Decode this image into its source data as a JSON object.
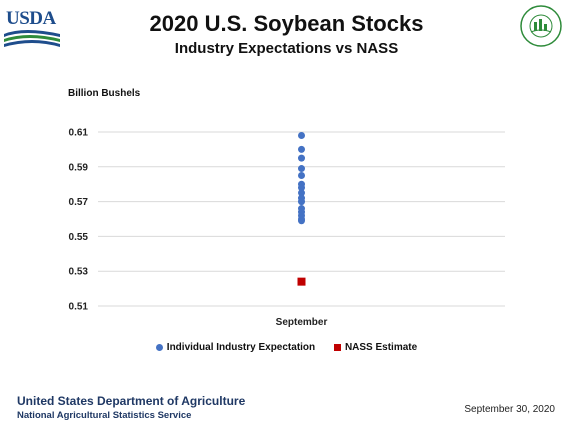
{
  "header": {
    "logo_text": "USDA",
    "seal_text": "AGRICULTURE COUNTS"
  },
  "colors": {
    "expectation": "#4472c4",
    "nass": "#c00000",
    "usda_blue": "#1e4d8c",
    "usda_green": "#2e8b3a",
    "gridline": "#d9d9d9"
  },
  "chart_data": {
    "type": "scatter",
    "title": "2020 U.S. Soybean Stocks",
    "subtitle": "Industry Expectations vs NASS",
    "ylabel": "Billion Bushels",
    "categories": [
      "September"
    ],
    "ylim": [
      0.51,
      0.61
    ],
    "yticks": [
      "0.61",
      "0.59",
      "0.57",
      "0.55",
      "0.53",
      "0.51"
    ],
    "grid": true,
    "legend_position": "bottom",
    "series": [
      {
        "name": "Individual Industry Expectation",
        "marker": "circle",
        "color": "#4472c4",
        "values": [
          0.608,
          0.6,
          0.595,
          0.589,
          0.585,
          0.58,
          0.578,
          0.575,
          0.572,
          0.57,
          0.566,
          0.564,
          0.562,
          0.56,
          0.559
        ]
      },
      {
        "name": "NASS Estimate",
        "marker": "square",
        "color": "#c00000",
        "values": [
          0.524
        ]
      }
    ]
  },
  "footer": {
    "org": "United States Department of Agriculture",
    "agency": "National Agricultural Statistics Service",
    "date": "September 30, 2020"
  }
}
